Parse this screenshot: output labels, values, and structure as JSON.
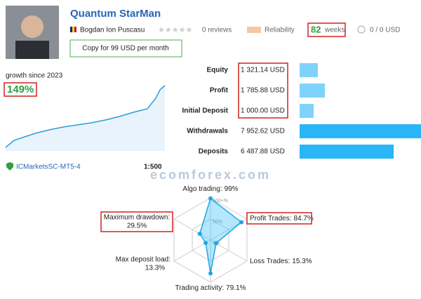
{
  "header": {
    "title": "Quantum StarMan",
    "author": "Bogdan Ion Puscasu",
    "reviews": "0 reviews",
    "reliability": "Reliability",
    "weeks_value": "82",
    "weeks_label": "weeks",
    "subscribers": "0 / 0 USD",
    "copy_button": "Copy for 99 USD per month"
  },
  "growth": {
    "label": "growth since 2023",
    "value": "149%"
  },
  "stats": [
    {
      "label": "Equity",
      "value": "1 321.14 USD"
    },
    {
      "label": "Profit",
      "value": "1 785.88 USD"
    },
    {
      "label": "Initial Deposit",
      "value": "1 000.00 USD"
    },
    {
      "label": "Withdrawals",
      "value": "7 952.62 USD"
    },
    {
      "label": "Deposits",
      "value": "6 487.88 USD"
    }
  ],
  "broker": "ICMarketsSC-MT5-4",
  "leverage": "1:500",
  "watermark": "ecomforex.com",
  "radar": {
    "scale": [
      {
        "value": 100,
        "label": "100+%"
      },
      {
        "value": 50,
        "label": "50%"
      },
      {
        "value": 0,
        "label": "0%"
      }
    ],
    "axes": [
      {
        "label": "Algo trading:",
        "value": 99,
        "value_label": "99%"
      },
      {
        "label": "Profit Trades:",
        "value": 84.7,
        "value_label": "84.7%"
      },
      {
        "label": "Loss Trades:",
        "value": 15.3,
        "value_label": "15.3%"
      },
      {
        "label": "Trading activity:",
        "value": 79.1,
        "value_label": "79.1%"
      },
      {
        "label": "Max deposit load:",
        "value": 13.3,
        "value_label": "13.3%"
      },
      {
        "label": "Maximum drawdown:",
        "value": 29.5,
        "value_label": "29.5%"
      }
    ]
  }
}
